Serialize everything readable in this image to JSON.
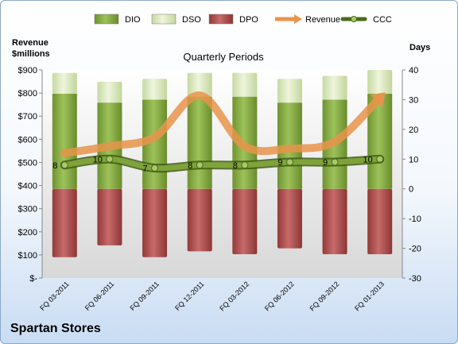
{
  "brand": "Spartan Stores",
  "chart_data": {
    "type": "bar",
    "title": "Quarterly Periods",
    "ylabel_left": "Revenue\n$millions",
    "ylabel_right": "Days",
    "categories": [
      "FQ 03-2011",
      "FQ 06-2011",
      "FQ 09-2011",
      "FQ 12-2011",
      "FQ 03-2012",
      "FQ 06-2012",
      "FQ 09-2012",
      "FQ 01-2013"
    ],
    "left_axis": {
      "ylim": [
        0,
        900
      ],
      "ticks": [
        0,
        100,
        200,
        300,
        400,
        500,
        600,
        700,
        800,
        900
      ],
      "tick_labels": [
        "$-",
        "$100",
        "$200",
        "$300",
        "$400",
        "$500",
        "$600",
        "$700",
        "$800",
        "$900"
      ]
    },
    "right_axis": {
      "ylim": [
        -30,
        40
      ],
      "ticks": [
        -30,
        -20,
        -10,
        0,
        10,
        20,
        30,
        40
      ],
      "tick_labels": [
        "-30",
        "-20",
        "-10",
        "0",
        "10",
        "20",
        "30",
        "40"
      ]
    },
    "series": [
      {
        "name": "DIO",
        "kind": "stacked-bar",
        "color": "#7fa33a",
        "values": [
          32,
          29,
          30,
          31,
          31,
          29,
          30,
          32
        ]
      },
      {
        "name": "DSO",
        "kind": "stacked-bar",
        "color": "#d7e4bd",
        "values": [
          7,
          7,
          7,
          8,
          8,
          8,
          8,
          8
        ]
      },
      {
        "name": "DPO",
        "kind": "negative-bar",
        "color": "#a84a4a",
        "values": [
          -23,
          -19,
          -23,
          -21,
          -22,
          -20,
          -22,
          -22
        ]
      },
      {
        "name": "Revenue",
        "kind": "line",
        "color": "#e8944a",
        "axis": "left",
        "values": [
          540,
          570,
          610,
          790,
          570,
          560,
          590,
          780
        ]
      },
      {
        "name": "CCC",
        "kind": "line-markers",
        "color": "#6b8e2b",
        "axis": "right",
        "values": [
          8,
          10,
          7,
          8,
          8,
          9,
          9,
          10
        ]
      }
    ],
    "ccc_labels": [
      "8",
      "10",
      "7",
      "8",
      "8",
      "9",
      "9",
      "10"
    ],
    "legend": [
      "DIO",
      "DSO",
      "DPO",
      "Revenue",
      "CCC"
    ],
    "legend_position": "top"
  }
}
